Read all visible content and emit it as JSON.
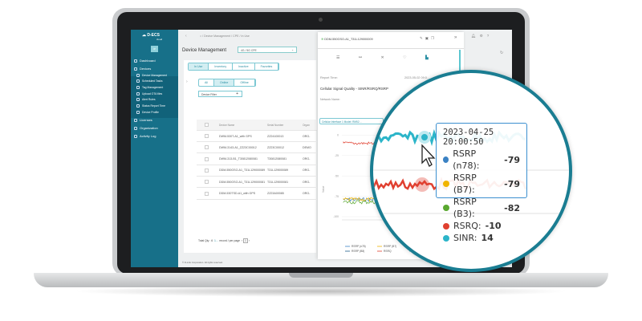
{
  "sidebar": {
    "brand": "D-ECS",
    "brand_sub": "cloud",
    "org_initials": "IP",
    "items": [
      {
        "label": "Dashboard"
      },
      {
        "label": "Devices"
      },
      {
        "label": "Licenses"
      },
      {
        "label": "Organization"
      },
      {
        "label": "Activity Log"
      }
    ],
    "sub_items": [
      {
        "label": "Device Management"
      },
      {
        "label": "Scheduled Tasks"
      },
      {
        "label": "Tag Management"
      },
      {
        "label": "Upload OTA files"
      },
      {
        "label": "Alert Rules"
      },
      {
        "label": "Status Report Time"
      },
      {
        "label": "Device Profile"
      }
    ]
  },
  "header": {
    "breadcrumb": "/ Device Management / CPE / In Use",
    "title": "Device Management",
    "type_select": "4G / 5G CPE"
  },
  "tabs": [
    "In Use",
    "Inventory",
    "Inactive",
    "Favorites"
  ],
  "status_tabs": [
    "All",
    "Online",
    "Offline"
  ],
  "device_filter": "Device Filter",
  "table": {
    "columns": [
      "Device Name",
      "Serial Number",
      "Organ"
    ],
    "rows": [
      [
        "DWM-530T-A1_with GPS",
        "ZZ24100013",
        "ORG-"
      ],
      [
        "DWM-3143-A1_ZZ23C00012",
        "ZZ23C00012",
        "DEMO"
      ],
      [
        "DWM-313-B1_T30812080081",
        "T30812080081",
        "ORG-"
      ],
      [
        "DDM-550GSO-A1_T31L129000089",
        "T31L129000089",
        "ORG-"
      ],
      [
        "DDM-550GSO-A1_T31L129000081",
        "T31L129000081",
        "ORG-"
      ],
      [
        "DDM-530TSD-A1_with GPS",
        "ZZ23A00085",
        "ORG-"
      ]
    ]
  },
  "pagination": {
    "total": "Total Qty : 6",
    "per_page": "1…",
    "per_page_label": "record / per page",
    "page": "1"
  },
  "footer": {
    "copyright": "© D-Link Corporation. All rights reserved.",
    "version": "Version 1.0.0.0 20241230"
  },
  "panel": {
    "device": "DDM-550GSO-A1_T31L129000009",
    "report_time_label": "Report Time:",
    "report_time": "2023-05-02 09:0…",
    "chart_title": "Cellular Signal Quality - SINR/RSRQ/RSRP",
    "network_label": "Network Name:",
    "interface": "Cellular Interface 1 Model: RM52…"
  },
  "chart_data": {
    "type": "line",
    "ylabel": "Value",
    "yticks": [
      "25",
      "0",
      "-25",
      "-50",
      "-75",
      "-100"
    ],
    "ylim": [
      -100,
      25
    ],
    "series": [
      {
        "name": "RSRP (n78)",
        "color": "#3b82c4",
        "level": -79
      },
      {
        "name": "RSRP (B7)",
        "color": "#f0b400",
        "level": -79
      },
      {
        "name": "RSRP (B3)",
        "color": "#5aa830",
        "level": -82
      },
      {
        "name": "RSRP (B8)",
        "color": "#1f5f8b"
      },
      {
        "name": "RSRQ",
        "color": "#e04030",
        "level": -10
      },
      {
        "name": "SINR",
        "color": "#2cb5c9",
        "level": 14
      }
    ],
    "tooltip": {
      "time": "2023-04-25 20:00:50",
      "entries": [
        {
          "label": "RSRP (n78):",
          "value": "-79",
          "color": "#3b82c4"
        },
        {
          "label": "RSRP (B7):",
          "value": "-79",
          "color": "#f0b400"
        },
        {
          "label": "RSRP (B3):",
          "value": "-82",
          "color": "#5aa830"
        },
        {
          "label": "RSRQ:",
          "value": "-10",
          "color": "#e04030"
        },
        {
          "label": "SINR:",
          "value": "14",
          "color": "#2cb5c9"
        }
      ]
    }
  }
}
